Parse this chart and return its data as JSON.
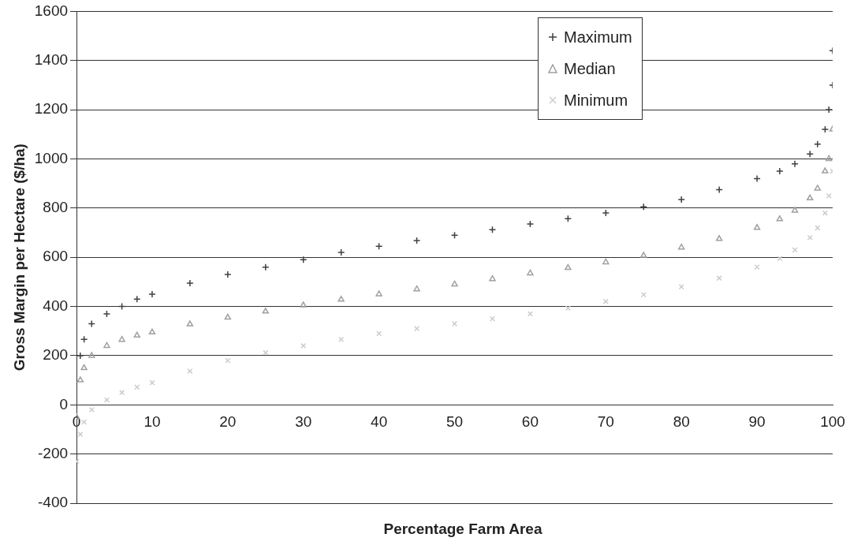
{
  "chart_data": {
    "type": "scatter",
    "xlabel": "Percentage Farm Area",
    "ylabel": "Gross Margin per Hectare ($/ha)",
    "xlim": [
      0,
      100
    ],
    "xticks": [
      0,
      10,
      20,
      30,
      40,
      50,
      60,
      70,
      80,
      90,
      100
    ],
    "ylim": [
      -400,
      1600
    ],
    "yticks": [
      -400,
      -200,
      0,
      200,
      400,
      600,
      800,
      1000,
      1200,
      1400,
      1600
    ],
    "grid": "y",
    "legend": "top right",
    "series": [
      {
        "name": "Maximum",
        "color": "#404040",
        "marker": "cross",
        "x": [
          0.5,
          1,
          2,
          4,
          6,
          8,
          10,
          15,
          20,
          25,
          30,
          35,
          40,
          45,
          50,
          55,
          60,
          65,
          70,
          75,
          80,
          85,
          90,
          93,
          95,
          97,
          98,
          99,
          99.5,
          100,
          100
        ],
        "values": [
          200,
          266,
          330,
          370,
          400,
          430,
          450,
          495,
          530,
          560,
          590,
          620,
          645,
          668,
          690,
          712,
          735,
          757,
          780,
          805,
          835,
          875,
          920,
          950,
          980,
          1020,
          1060,
          1120,
          1200,
          1300,
          1440
        ]
      },
      {
        "name": "Median",
        "color": "#a0a0a0",
        "marker": "triangle",
        "x": [
          0,
          0.5,
          1,
          2,
          4,
          6,
          8,
          10,
          15,
          20,
          25,
          30,
          35,
          40,
          45,
          50,
          55,
          60,
          65,
          70,
          75,
          80,
          85,
          90,
          93,
          95,
          97,
          98,
          99,
          99.5,
          100
        ],
        "values": [
          -50,
          100,
          150,
          200,
          240,
          265,
          282,
          295,
          328,
          355,
          380,
          405,
          428,
          450,
          470,
          490,
          512,
          535,
          557,
          580,
          607,
          640,
          675,
          720,
          755,
          790,
          840,
          880,
          950,
          1000,
          1120
        ]
      },
      {
        "name": "Minimum",
        "color": "#cccccc",
        "marker": "cross",
        "x": [
          0,
          0.5,
          1,
          2,
          4,
          6,
          8,
          10,
          15,
          20,
          25,
          30,
          35,
          40,
          45,
          50,
          55,
          60,
          65,
          70,
          75,
          80,
          85,
          90,
          93,
          95,
          97,
          98,
          99,
          99.5,
          100
        ],
        "values": [
          -230,
          -120,
          -70,
          -20,
          20,
          50,
          72,
          90,
          137,
          180,
          212,
          240,
          266,
          290,
          310,
          330,
          350,
          370,
          393,
          420,
          448,
          480,
          515,
          560,
          595,
          630,
          680,
          720,
          780,
          850,
          950
        ]
      }
    ]
  }
}
